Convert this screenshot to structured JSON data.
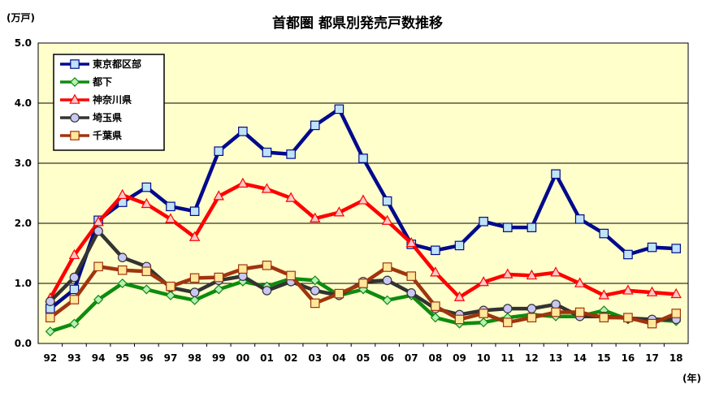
{
  "chart_data": {
    "type": "line",
    "title": "首都圏 都県別発売戸数推移",
    "ylabel": "(万戸)",
    "xlabel": "(年)",
    "ylim": [
      0,
      5
    ],
    "yticks": [
      "0.0",
      "1.0",
      "2.0",
      "3.0",
      "4.0",
      "5.0"
    ],
    "categories": [
      "92",
      "93",
      "94",
      "95",
      "96",
      "97",
      "98",
      "99",
      "00",
      "01",
      "02",
      "03",
      "04",
      "05",
      "06",
      "07",
      "08",
      "09",
      "10",
      "11",
      "12",
      "13",
      "14",
      "15",
      "16",
      "17",
      "18"
    ],
    "grid": true,
    "legend_position": "top-left",
    "colors": {
      "plot_background": "#ffffcc",
      "gridline": "#000000"
    },
    "series": [
      {
        "name": "東京都区部",
        "line_color": "#000a8c",
        "marker": "square",
        "marker_fill": "#bfe3f7",
        "values": [
          0.58,
          0.9,
          2.05,
          2.35,
          2.6,
          2.28,
          2.2,
          3.2,
          3.53,
          3.18,
          3.15,
          3.63,
          3.9,
          3.08,
          2.37,
          1.65,
          1.55,
          1.63,
          2.03,
          1.93,
          1.93,
          2.82,
          2.07,
          1.83,
          1.48,
          1.6,
          1.58
        ]
      },
      {
        "name": "都下",
        "line_color": "#0d8c0d",
        "marker": "diamond",
        "marker_fill": "#b6f0b6",
        "values": [
          0.2,
          0.33,
          0.73,
          1.0,
          0.9,
          0.8,
          0.72,
          0.9,
          1.03,
          0.95,
          1.08,
          1.05,
          0.8,
          0.9,
          0.72,
          0.8,
          0.43,
          0.33,
          0.35,
          0.43,
          0.48,
          0.45,
          0.45,
          0.55,
          0.4,
          0.4,
          0.37
        ]
      },
      {
        "name": "神奈川県",
        "line_color": "#ff0000",
        "marker": "triangle",
        "marker_fill": "#ffc8c8",
        "values": [
          0.75,
          1.47,
          2.02,
          2.47,
          2.32,
          2.07,
          1.77,
          2.45,
          2.66,
          2.57,
          2.42,
          2.08,
          2.18,
          2.38,
          2.04,
          1.67,
          1.18,
          0.77,
          1.02,
          1.15,
          1.13,
          1.18,
          1.0,
          0.8,
          0.88,
          0.85,
          0.82
        ]
      },
      {
        "name": "埼玉県",
        "line_color": "#333333",
        "marker": "circle",
        "marker_fill": "#c8c8f5",
        "values": [
          0.7,
          1.1,
          1.87,
          1.43,
          1.28,
          0.93,
          0.85,
          1.05,
          1.12,
          0.88,
          1.03,
          0.88,
          0.8,
          1.03,
          1.05,
          0.84,
          0.58,
          0.48,
          0.55,
          0.58,
          0.58,
          0.65,
          0.45,
          0.45,
          0.42,
          0.4,
          0.4
        ]
      },
      {
        "name": "千葉県",
        "line_color": "#a0340e",
        "marker": "square",
        "marker_fill": "#ffe89a",
        "values": [
          0.43,
          0.73,
          1.28,
          1.22,
          1.2,
          0.95,
          1.09,
          1.1,
          1.24,
          1.3,
          1.13,
          0.67,
          0.83,
          1.0,
          1.27,
          1.12,
          0.62,
          0.4,
          0.5,
          0.35,
          0.43,
          0.52,
          0.52,
          0.43,
          0.43,
          0.33,
          0.5
        ]
      }
    ]
  }
}
